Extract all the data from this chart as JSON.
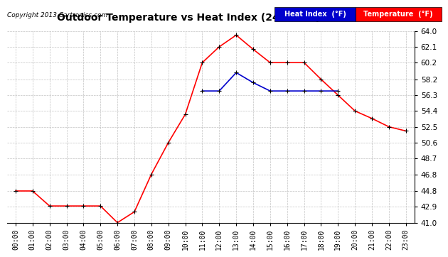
{
  "title": "Outdoor Temperature vs Heat Index (24 Hours) 20130422",
  "copyright": "Copyright 2013 Cartronics.com",
  "background_color": "#ffffff",
  "plot_bg_color": "#ffffff",
  "grid_color": "#bbbbbb",
  "hours": [
    0,
    1,
    2,
    3,
    4,
    5,
    6,
    7,
    8,
    9,
    10,
    11,
    12,
    13,
    14,
    15,
    16,
    17,
    18,
    19,
    20,
    21,
    22,
    23
  ],
  "temp": [
    44.8,
    44.8,
    43.0,
    43.0,
    43.0,
    43.0,
    41.0,
    42.3,
    46.8,
    50.6,
    54.0,
    60.2,
    62.1,
    63.5,
    61.8,
    60.2,
    60.2,
    60.2,
    58.2,
    56.3,
    54.4,
    53.5,
    52.5,
    52.0
  ],
  "heat_index": [
    null,
    null,
    null,
    null,
    null,
    null,
    null,
    null,
    null,
    null,
    null,
    56.8,
    56.8,
    59.0,
    57.8,
    56.8,
    56.8,
    56.8,
    56.8,
    56.8,
    null,
    null,
    null,
    null
  ],
  "temp_color": "#ff0000",
  "heat_index_color": "#0000cc",
  "marker": "+",
  "markersize": 5,
  "linewidth": 1.2,
  "ylim": [
    41.0,
    64.0
  ],
  "yticks": [
    41.0,
    42.9,
    44.8,
    46.8,
    48.7,
    50.6,
    52.5,
    54.4,
    56.3,
    58.2,
    60.2,
    62.1,
    64.0
  ],
  "legend_heat_label": "Heat Index  (°F)",
  "legend_temp_label": "Temperature  (°F)"
}
